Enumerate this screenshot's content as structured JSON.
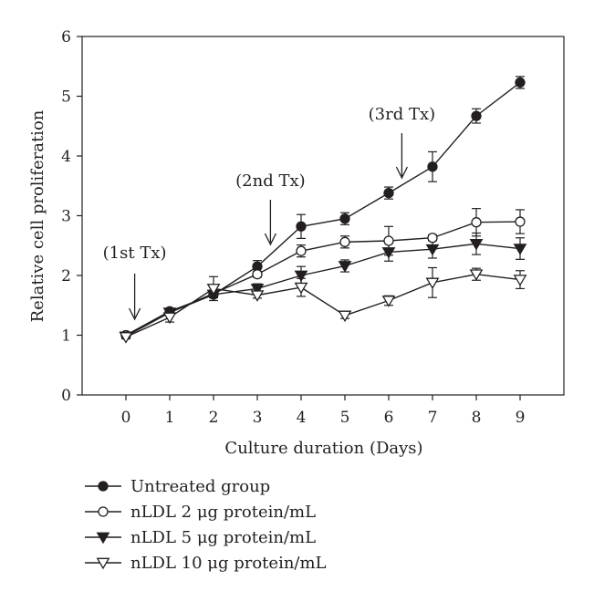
{
  "chart_data": {
    "type": "line",
    "title": "",
    "xlabel": "Culture duration (Days)",
    "ylabel": "Relative cell proliferation",
    "x": [
      0,
      1,
      2,
      3,
      4,
      5,
      6,
      7,
      8,
      9
    ],
    "xlim": [
      -1,
      10
    ],
    "ylim": [
      0,
      6
    ],
    "xticks": [
      "0",
      "1",
      "2",
      "3",
      "4",
      "5",
      "6",
      "7",
      "8",
      "9"
    ],
    "yticks": [
      "0",
      "1",
      "2",
      "3",
      "4",
      "5",
      "6"
    ],
    "grid": false,
    "legend_position": "bottom",
    "series": [
      {
        "name": "Untreated group",
        "marker": "filled-circle",
        "values": [
          1.0,
          1.4,
          1.68,
          2.15,
          2.82,
          2.95,
          3.38,
          3.82,
          4.67,
          5.23
        ],
        "errors": [
          0.03,
          0.05,
          0.05,
          0.1,
          0.2,
          0.1,
          0.1,
          0.25,
          0.12,
          0.1
        ]
      },
      {
        "name": "nLDL 2 μg protein/mL",
        "marker": "open-circle",
        "values": [
          1.0,
          1.38,
          1.7,
          2.02,
          2.41,
          2.56,
          2.58,
          2.63,
          2.89,
          2.9
        ],
        "errors": [
          0.03,
          0.05,
          0.05,
          0.05,
          0.1,
          0.1,
          0.24,
          0.05,
          0.23,
          0.2
        ]
      },
      {
        "name": "nLDL 5 μg protein/mL",
        "marker": "filled-triangle-down",
        "values": [
          0.98,
          1.38,
          1.68,
          1.78,
          2.0,
          2.16,
          2.39,
          2.44,
          2.53,
          2.45
        ],
        "errors": [
          0.03,
          0.05,
          0.05,
          0.08,
          0.15,
          0.1,
          0.15,
          0.15,
          0.18,
          0.18
        ]
      },
      {
        "name": "nLDL 10 μg protein/mL",
        "marker": "open-triangle-down",
        "values": [
          0.97,
          1.3,
          1.78,
          1.67,
          1.8,
          1.33,
          1.58,
          1.88,
          2.02,
          1.93
        ],
        "errors": [
          0.03,
          0.08,
          0.2,
          0.05,
          0.15,
          0.05,
          0.08,
          0.25,
          0.1,
          0.15
        ]
      }
    ],
    "annotations": [
      {
        "text": "(1st Tx)",
        "x": 0.2
      },
      {
        "text": "(2nd Tx)",
        "x": 3.3
      },
      {
        "text": "(3rd Tx)",
        "x": 6.3
      }
    ]
  }
}
